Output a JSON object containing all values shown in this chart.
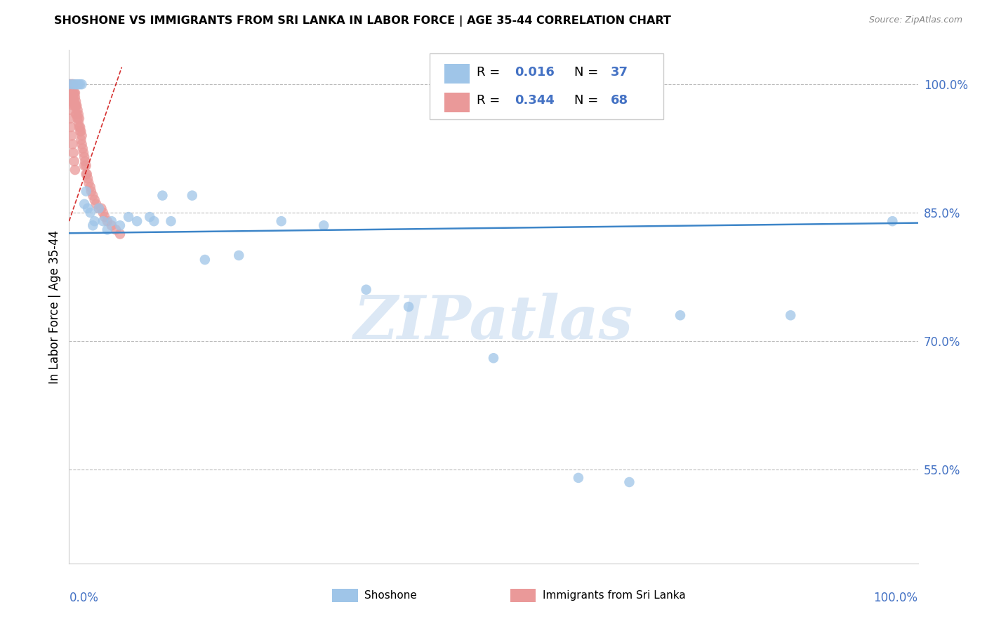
{
  "title": "SHOSHONE VS IMMIGRANTS FROM SRI LANKA IN LABOR FORCE | AGE 35-44 CORRELATION CHART",
  "source": "Source: ZipAtlas.com",
  "ylabel": "In Labor Force | Age 35-44",
  "xlim": [
    0.0,
    1.0
  ],
  "ylim": [
    0.44,
    1.04
  ],
  "yticks": [
    0.55,
    0.7,
    0.85,
    1.0
  ],
  "ytick_labels": [
    "55.0%",
    "70.0%",
    "85.0%",
    "100.0%"
  ],
  "blue_color": "#9fc5e8",
  "pink_color": "#ea9999",
  "blue_line_color": "#3d85c8",
  "pink_line_color": "#cc0000",
  "axis_color": "#4472c4",
  "grid_color": "#bbbbbb",
  "watermark_text": "ZIPatlas",
  "watermark_color": "#dce8f5",
  "blue_x": [
    0.0,
    0.004,
    0.007,
    0.009,
    0.011,
    0.013,
    0.015,
    0.018,
    0.02,
    0.022,
    0.025,
    0.028,
    0.03,
    0.035,
    0.04,
    0.045,
    0.05,
    0.06,
    0.07,
    0.08,
    0.095,
    0.1,
    0.11,
    0.12,
    0.145,
    0.16,
    0.2,
    0.25,
    0.3,
    0.35,
    0.4,
    0.5,
    0.6,
    0.66,
    0.72,
    0.85,
    0.97
  ],
  "blue_y": [
    1.0,
    1.0,
    1.0,
    1.0,
    1.0,
    1.0,
    1.0,
    0.86,
    0.875,
    0.855,
    0.85,
    0.835,
    0.84,
    0.855,
    0.84,
    0.83,
    0.84,
    0.835,
    0.845,
    0.84,
    0.845,
    0.84,
    0.87,
    0.84,
    0.87,
    0.795,
    0.8,
    0.84,
    0.835,
    0.76,
    0.74,
    0.68,
    0.54,
    0.535,
    0.73,
    0.73,
    0.84
  ],
  "pink_x": [
    0.0,
    0.001,
    0.001,
    0.002,
    0.002,
    0.003,
    0.003,
    0.003,
    0.004,
    0.004,
    0.004,
    0.005,
    0.005,
    0.005,
    0.005,
    0.006,
    0.006,
    0.007,
    0.007,
    0.007,
    0.008,
    0.008,
    0.008,
    0.009,
    0.009,
    0.01,
    0.01,
    0.011,
    0.011,
    0.012,
    0.012,
    0.013,
    0.013,
    0.014,
    0.014,
    0.015,
    0.015,
    0.016,
    0.017,
    0.018,
    0.018,
    0.019,
    0.02,
    0.02,
    0.021,
    0.022,
    0.023,
    0.025,
    0.026,
    0.028,
    0.03,
    0.032,
    0.035,
    0.038,
    0.04,
    0.042,
    0.045,
    0.05,
    0.055,
    0.06,
    0.0,
    0.001,
    0.002,
    0.003,
    0.004,
    0.005,
    0.006,
    0.007
  ],
  "pink_y": [
    1.0,
    1.0,
    0.99,
    1.0,
    0.985,
    1.0,
    0.99,
    0.98,
    1.0,
    0.99,
    0.98,
    1.0,
    0.99,
    0.985,
    0.975,
    0.99,
    0.98,
    0.99,
    0.985,
    0.975,
    0.98,
    0.975,
    0.965,
    0.975,
    0.965,
    0.97,
    0.96,
    0.965,
    0.955,
    0.96,
    0.95,
    0.95,
    0.945,
    0.945,
    0.935,
    0.94,
    0.93,
    0.925,
    0.92,
    0.915,
    0.905,
    0.91,
    0.905,
    0.895,
    0.895,
    0.89,
    0.885,
    0.88,
    0.875,
    0.87,
    0.865,
    0.86,
    0.855,
    0.855,
    0.85,
    0.845,
    0.84,
    0.835,
    0.83,
    0.825,
    0.97,
    0.96,
    0.95,
    0.94,
    0.93,
    0.92,
    0.91,
    0.9
  ],
  "blue_trend_x": [
    0.0,
    1.0
  ],
  "blue_trend_y": [
    0.826,
    0.838
  ],
  "pink_trend_x": [
    0.0,
    0.062
  ],
  "pink_trend_y": [
    0.84,
    1.02
  ]
}
